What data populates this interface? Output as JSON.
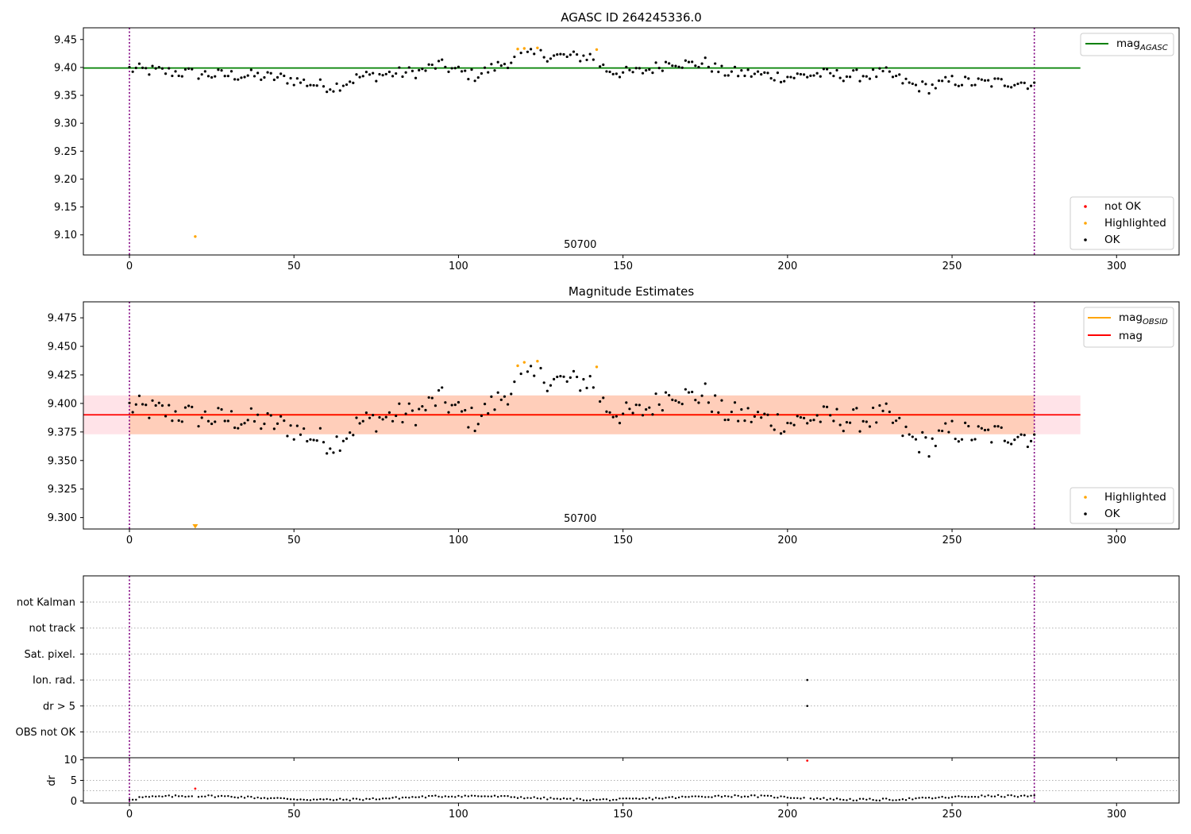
{
  "chart_data": [
    {
      "type": "scatter",
      "id": "p1",
      "title": "AGASC ID 264245336.0",
      "xlim": [
        -14,
        319
      ],
      "ylim": [
        9.064,
        9.471
      ],
      "xticks": [
        0,
        50,
        100,
        150,
        200,
        250,
        300
      ],
      "yticks": [
        9.1,
        9.15,
        9.2,
        9.25,
        9.3,
        9.35,
        9.4,
        9.45
      ],
      "ytick_decimals": 2,
      "obsid_label": "50700",
      "obsid_label_x": 137,
      "obs_boundaries": [
        0,
        275
      ],
      "mag_agasc": 9.399,
      "mag_agasc_xrange": [
        -14,
        289
      ],
      "series_legend": [
        {
          "name": "not OK",
          "color": "#ff0000"
        },
        {
          "name": "Highlighted",
          "color": "#ffa500"
        },
        {
          "name": "OK",
          "color": "#000000"
        }
      ],
      "line_legend": [
        {
          "name": "mag",
          "sub": "AGASC",
          "color": "#008000"
        }
      ],
      "highlighted": [
        {
          "x": 20,
          "y": 9.097
        },
        {
          "x": 118,
          "y": 9.433
        },
        {
          "x": 120,
          "y": 9.434
        },
        {
          "x": 124,
          "y": 9.435
        },
        {
          "x": 142,
          "y": 9.432
        }
      ]
    },
    {
      "type": "scatter",
      "id": "p2",
      "title": "Magnitude Estimates",
      "xlim": [
        -14,
        319
      ],
      "ylim": [
        9.29,
        9.489
      ],
      "xticks": [
        0,
        50,
        100,
        150,
        200,
        250,
        300
      ],
      "yticks": [
        9.3,
        9.325,
        9.35,
        9.375,
        9.4,
        9.425,
        9.45,
        9.475
      ],
      "ytick_decimals": 3,
      "obsid_label": "50700",
      "obsid_label_x": 137,
      "obs_boundaries": [
        0,
        275
      ],
      "mag": 9.39,
      "mag_obsid": 9.39,
      "mag_band": [
        9.373,
        9.407
      ],
      "band_xrange": [
        -14,
        289
      ],
      "series_legend": [
        {
          "name": "Highlighted",
          "color": "#ffa500"
        },
        {
          "name": "OK",
          "color": "#000000"
        }
      ],
      "line_legend": [
        {
          "name": "mag",
          "sub": "OBSID",
          "color": "#ffa500"
        },
        {
          "name": "mag",
          "sub": "",
          "color": "#ff0000"
        }
      ],
      "highlighted": [
        {
          "x": 118,
          "y": 9.433
        },
        {
          "x": 120,
          "y": 9.436
        },
        {
          "x": 124,
          "y": 9.437
        },
        {
          "x": 142,
          "y": 9.432
        }
      ],
      "clipped_marker": {
        "x": 20,
        "color": "#ffa500"
      }
    },
    {
      "type": "scatter",
      "id": "p3",
      "title": "",
      "xlim": [
        -14,
        319
      ],
      "flag_labels": [
        "not Kalman",
        "not track",
        "Sat. pixel.",
        "Ion. rad.",
        "dr > 5",
        "OBS not OK"
      ],
      "flag_points": [
        {
          "flag": "Ion. rad.",
          "x": 206
        },
        {
          "flag": "dr > 5",
          "x": 206
        }
      ],
      "obs_boundaries": [
        0,
        275
      ]
    },
    {
      "type": "scatter",
      "id": "p4",
      "title": "",
      "xlim": [
        -14,
        319
      ],
      "ylim": [
        -0.5,
        10.5
      ],
      "xticks": [
        0,
        50,
        100,
        150,
        200,
        250,
        300
      ],
      "yticks": [
        0,
        5,
        10
      ],
      "ylabel": "dr",
      "obs_boundaries": [
        0,
        275
      ],
      "red_points": [
        {
          "x": 20,
          "y": 3.0
        },
        {
          "x": 206,
          "y": 9.8
        }
      ]
    }
  ]
}
